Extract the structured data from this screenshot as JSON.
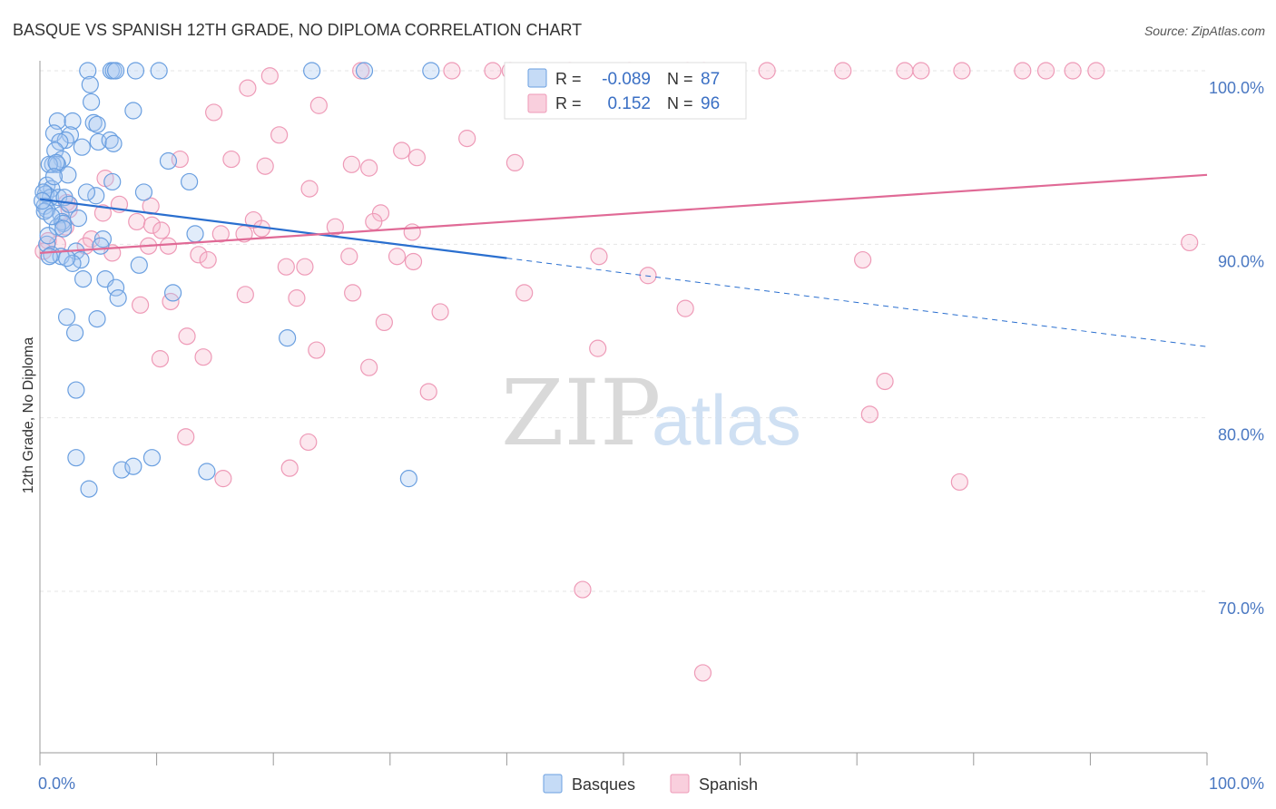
{
  "chart_data": {
    "type": "scatter",
    "title": "BASQUE VS SPANISH 12TH GRADE, NO DIPLOMA CORRELATION CHART",
    "source": "Source: ZipAtlas.com",
    "ylabel": "12th Grade, No Diploma",
    "xlim": [
      0,
      100
    ],
    "ylim": [
      60.5,
      101
    ],
    "x_tick_labels": [
      "0.0%",
      "100.0%"
    ],
    "y_ticks": [
      {
        "value": 100,
        "label": "100.0%"
      },
      {
        "value": 90,
        "label": "90.0%"
      },
      {
        "value": 80,
        "label": "80.0%"
      },
      {
        "value": 70,
        "label": "70.0%"
      }
    ],
    "grid": true,
    "legend_position": "top-center",
    "watermark": {
      "zip": "ZIP",
      "atlas": "atlas"
    },
    "stats": [
      {
        "r_label": "R =",
        "r": "-0.089",
        "n_label": "N =",
        "n": "87"
      },
      {
        "r_label": "R =",
        "r": "0.152",
        "n_label": "N =",
        "n": "96"
      }
    ],
    "series": [
      {
        "name": "Basques",
        "color": "#6a9fe0",
        "line_color": "#2a6fcf",
        "trend": {
          "x0": 0,
          "y0": 92.6,
          "x1": 40,
          "y1": 89.2,
          "dash_to_x": 100,
          "dash_to_y": 84.1
        },
        "points": [
          [
            4.1,
            100
          ],
          [
            6.1,
            100
          ],
          [
            6.3,
            100
          ],
          [
            8.2,
            100
          ],
          [
            10.2,
            100
          ],
          [
            23.3,
            100
          ],
          [
            27.8,
            100
          ],
          [
            33.5,
            100
          ],
          [
            6.5,
            100
          ],
          [
            4.3,
            99.2
          ],
          [
            4.4,
            98.2
          ],
          [
            8.0,
            97.7
          ],
          [
            1.5,
            97.1
          ],
          [
            2.8,
            97.1
          ],
          [
            4.6,
            97.0
          ],
          [
            4.9,
            96.9
          ],
          [
            1.2,
            96.4
          ],
          [
            2.6,
            96.3
          ],
          [
            2.2,
            96.0
          ],
          [
            1.7,
            95.9
          ],
          [
            5.0,
            95.9
          ],
          [
            6.0,
            96.0
          ],
          [
            6.3,
            95.8
          ],
          [
            3.6,
            95.6
          ],
          [
            1.3,
            95.4
          ],
          [
            1.9,
            94.9
          ],
          [
            1.1,
            94.6
          ],
          [
            1.5,
            94.6
          ],
          [
            0.8,
            94.6
          ],
          [
            11.0,
            94.8
          ],
          [
            1.4,
            94.7
          ],
          [
            2.4,
            94.0
          ],
          [
            12.8,
            93.6
          ],
          [
            6.2,
            93.6
          ],
          [
            0.6,
            93.4
          ],
          [
            1.0,
            93.2
          ],
          [
            0.5,
            92.9
          ],
          [
            0.9,
            92.7
          ],
          [
            1.6,
            92.7
          ],
          [
            2.1,
            92.7
          ],
          [
            4.8,
            92.8
          ],
          [
            8.9,
            93.0
          ],
          [
            0.4,
            92.2
          ],
          [
            0.6,
            92.0
          ],
          [
            1.8,
            91.7
          ],
          [
            1.9,
            91.3
          ],
          [
            2.0,
            91.2
          ],
          [
            1.5,
            91.0
          ],
          [
            2.0,
            90.9
          ],
          [
            13.3,
            90.6
          ],
          [
            5.4,
            90.3
          ],
          [
            0.6,
            90.0
          ],
          [
            3.1,
            89.6
          ],
          [
            5.2,
            89.9
          ],
          [
            1.0,
            89.4
          ],
          [
            1.8,
            89.3
          ],
          [
            3.5,
            89.1
          ],
          [
            2.8,
            88.9
          ],
          [
            8.5,
            88.8
          ],
          [
            5.6,
            88.0
          ],
          [
            3.7,
            88.0
          ],
          [
            11.4,
            87.2
          ],
          [
            6.5,
            87.5
          ],
          [
            6.7,
            86.9
          ],
          [
            2.3,
            85.8
          ],
          [
            4.9,
            85.7
          ],
          [
            3.0,
            84.9
          ],
          [
            21.2,
            84.6
          ],
          [
            3.1,
            81.6
          ],
          [
            3.1,
            77.7
          ],
          [
            7.0,
            77.0
          ],
          [
            8.0,
            77.2
          ],
          [
            9.6,
            77.7
          ],
          [
            14.3,
            76.9
          ],
          [
            4.2,
            75.9
          ],
          [
            31.6,
            76.5
          ],
          [
            0.3,
            93.0
          ],
          [
            0.4,
            91.9
          ],
          [
            0.7,
            90.5
          ],
          [
            0.2,
            92.5
          ],
          [
            1.2,
            93.9
          ],
          [
            2.5,
            92.3
          ],
          [
            3.3,
            91.5
          ],
          [
            0.8,
            89.3
          ],
          [
            1.0,
            91.6
          ],
          [
            2.3,
            89.2
          ],
          [
            4.0,
            93.0
          ]
        ]
      },
      {
        "name": "Spanish",
        "color": "#ee9ab7",
        "line_color": "#e06a96",
        "trend": {
          "x0": 0,
          "y0": 89.5,
          "x1": 100,
          "y1": 94.0
        },
        "points": [
          [
            27.5,
            100
          ],
          [
            35.3,
            100
          ],
          [
            38.8,
            100
          ],
          [
            40.3,
            100
          ],
          [
            42.5,
            100
          ],
          [
            45.4,
            100
          ],
          [
            50.5,
            100
          ],
          [
            55.5,
            100
          ],
          [
            56.9,
            100
          ],
          [
            62.3,
            100
          ],
          [
            68.8,
            100
          ],
          [
            74.1,
            100
          ],
          [
            75.5,
            100
          ],
          [
            79.0,
            100
          ],
          [
            84.2,
            100
          ],
          [
            86.2,
            100
          ],
          [
            88.5,
            100
          ],
          [
            90.5,
            100
          ],
          [
            46.9,
            99.7
          ],
          [
            19.7,
            99.7
          ],
          [
            17.8,
            99.0
          ],
          [
            23.9,
            98.0
          ],
          [
            14.9,
            97.6
          ],
          [
            20.5,
            96.3
          ],
          [
            36.6,
            96.1
          ],
          [
            31.0,
            95.4
          ],
          [
            32.3,
            95.0
          ],
          [
            12.0,
            94.9
          ],
          [
            16.4,
            94.9
          ],
          [
            26.7,
            94.6
          ],
          [
            28.2,
            94.4
          ],
          [
            19.3,
            94.5
          ],
          [
            40.7,
            94.7
          ],
          [
            5.6,
            93.8
          ],
          [
            23.1,
            93.2
          ],
          [
            6.8,
            92.3
          ],
          [
            9.5,
            92.2
          ],
          [
            2.3,
            92.4
          ],
          [
            2.5,
            92.0
          ],
          [
            5.4,
            91.8
          ],
          [
            29.2,
            91.8
          ],
          [
            18.3,
            91.4
          ],
          [
            8.3,
            91.3
          ],
          [
            9.6,
            91.1
          ],
          [
            28.6,
            91.3
          ],
          [
            25.3,
            91.0
          ],
          [
            19.0,
            90.9
          ],
          [
            2.2,
            91.0
          ],
          [
            10.4,
            90.8
          ],
          [
            31.9,
            90.7
          ],
          [
            15.5,
            90.6
          ],
          [
            17.5,
            90.6
          ],
          [
            4.4,
            90.3
          ],
          [
            3.9,
            89.9
          ],
          [
            9.3,
            89.9
          ],
          [
            11.0,
            89.9
          ],
          [
            6.2,
            89.5
          ],
          [
            13.6,
            89.4
          ],
          [
            26.5,
            89.3
          ],
          [
            30.6,
            89.3
          ],
          [
            32.0,
            89.0
          ],
          [
            14.4,
            89.1
          ],
          [
            47.9,
            89.3
          ],
          [
            21.1,
            88.7
          ],
          [
            22.7,
            88.7
          ],
          [
            70.5,
            89.1
          ],
          [
            52.1,
            88.2
          ],
          [
            1.5,
            90.0
          ],
          [
            0.7,
            90.2
          ],
          [
            17.6,
            87.1
          ],
          [
            22.0,
            86.9
          ],
          [
            26.8,
            87.2
          ],
          [
            41.5,
            87.2
          ],
          [
            11.2,
            86.7
          ],
          [
            8.6,
            86.5
          ],
          [
            34.3,
            86.1
          ],
          [
            55.3,
            86.3
          ],
          [
            29.5,
            85.5
          ],
          [
            12.6,
            84.7
          ],
          [
            47.8,
            84.0
          ],
          [
            23.7,
            83.9
          ],
          [
            10.3,
            83.4
          ],
          [
            14.0,
            83.5
          ],
          [
            28.2,
            82.9
          ],
          [
            33.3,
            81.5
          ],
          [
            72.4,
            82.1
          ],
          [
            71.1,
            80.2
          ],
          [
            12.5,
            78.9
          ],
          [
            23.0,
            78.6
          ],
          [
            21.4,
            77.1
          ],
          [
            15.7,
            76.5
          ],
          [
            78.8,
            76.3
          ],
          [
            46.5,
            70.1
          ],
          [
            56.8,
            65.3
          ],
          [
            98.5,
            90.1
          ],
          [
            0.3,
            89.6
          ]
        ]
      }
    ]
  },
  "legend": {
    "items": [
      {
        "label": "Basques",
        "color": "#6a9fe0"
      },
      {
        "label": "Spanish",
        "color": "#ee9ab7"
      }
    ]
  }
}
